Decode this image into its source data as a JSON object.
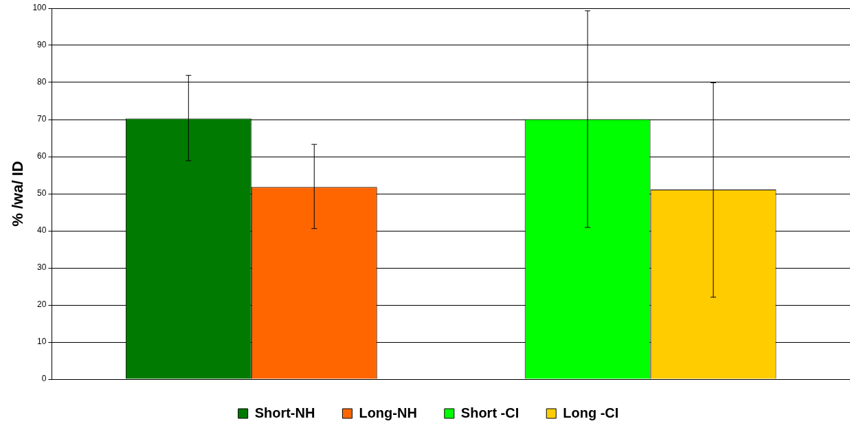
{
  "chart_data": {
    "type": "bar",
    "categories": [
      null,
      null
    ],
    "ylabel": "% /wa/ ID",
    "ylim": [
      0,
      100
    ],
    "yticks": [
      0,
      10,
      20,
      30,
      40,
      50,
      60,
      70,
      80,
      90,
      100
    ],
    "grid": "y",
    "legend": "bottom",
    "series": [
      {
        "name": "Short-NH",
        "color": "#007a00",
        "values": [
          70.3,
          null
        ],
        "errors": [
          [
            58.9,
            81.9
          ],
          null
        ]
      },
      {
        "name": "Long-NH",
        "color": "#ff6600",
        "values": [
          51.8,
          null
        ],
        "errors": [
          [
            40.6,
            63.3
          ],
          null
        ]
      },
      {
        "name": "Short -CI",
        "color": "#00ff00",
        "values": [
          null,
          70.1
        ],
        "errors": [
          null,
          [
            40.9,
            99.3
          ]
        ]
      },
      {
        "name": "Long -CI",
        "color": "#ffcc00",
        "values": [
          null,
          51.1
        ],
        "errors": [
          null,
          [
            22.1,
            79.9
          ]
        ]
      }
    ]
  }
}
